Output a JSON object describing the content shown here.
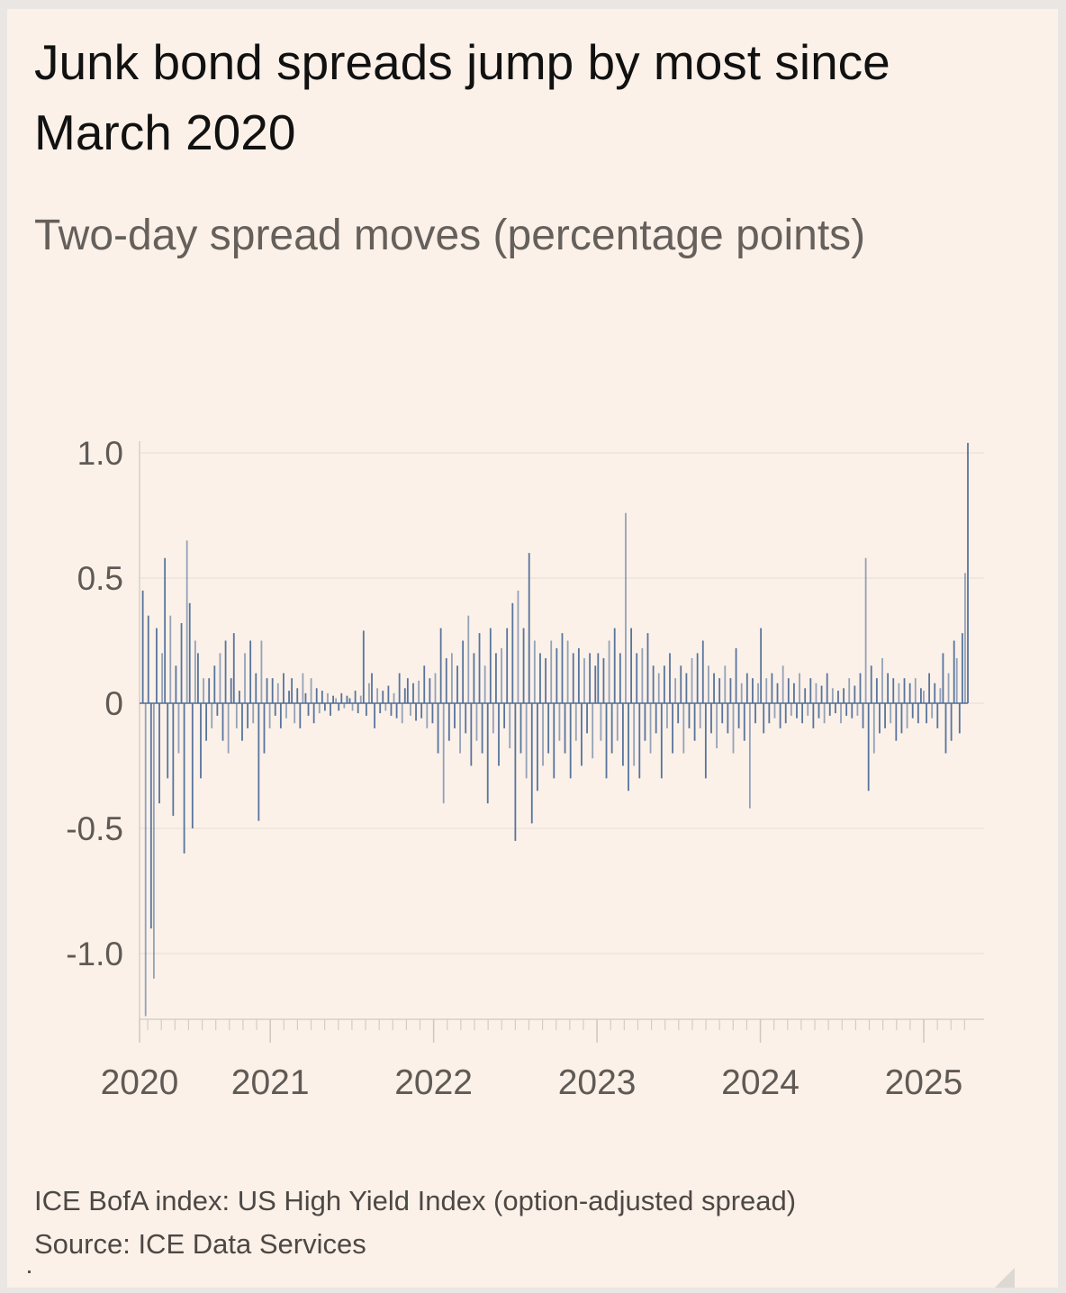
{
  "colors": {
    "background": "#fbf1e8",
    "bar": "#4f6d99",
    "grid": "#e6ddd4",
    "axis_text": "#5f5a56"
  },
  "header": {
    "title": "Junk bond spreads jump by most since March 2020",
    "subtitle": "Two-day spread moves (percentage points)"
  },
  "footer": {
    "note": "ICE BofA index: US High Yield Index (option-adjusted spread)",
    "source": "Source: ICE Data Services"
  },
  "chart_data": {
    "type": "bar",
    "title": "Junk bond spreads jump by most since March 2020",
    "subtitle": "Two-day spread moves (percentage points)",
    "xlabel": "",
    "ylabel": "Two-day spread moves (percentage points)",
    "ylim": [
      -1.25,
      1.05
    ],
    "xlim": [
      2020.2,
      2025.3
    ],
    "x_start": 2020.22,
    "x_end": 2025.27,
    "yticks": [
      1.0,
      0.5,
      0,
      -0.5,
      -1.0
    ],
    "ytick_labels": [
      "1.0",
      "0.5",
      "0",
      "-0.5",
      "-1.0"
    ],
    "xticks": [
      2020.2,
      2021,
      2022,
      2023,
      2024,
      2025
    ],
    "xtick_labels": [
      "2020",
      "2021",
      "2022",
      "2023",
      "2024",
      "2025"
    ],
    "grid": true,
    "legend": "none",
    "values": [
      0.45,
      -1.25,
      0.35,
      -0.9,
      -1.1,
      0.3,
      -0.4,
      0.2,
      0.58,
      -0.3,
      0.35,
      -0.45,
      0.15,
      -0.2,
      0.32,
      -0.6,
      0.65,
      0.4,
      -0.5,
      0.25,
      0.2,
      -0.3,
      0.1,
      -0.15,
      0.1,
      -0.1,
      0.15,
      -0.05,
      0.2,
      -0.15,
      0.25,
      -0.2,
      0.1,
      0.28,
      -0.1,
      0.05,
      -0.15,
      0.2,
      -0.1,
      0.25,
      -0.08,
      0.12,
      -0.47,
      0.25,
      -0.2,
      0.1,
      -0.1,
      0.1,
      -0.05,
      0.08,
      -0.1,
      0.12,
      -0.06,
      0.05,
      0.1,
      -0.08,
      0.06,
      -0.1,
      0.12,
      0.04,
      -0.05,
      0.1,
      -0.08,
      0.06,
      -0.04,
      0.05,
      -0.03,
      0.04,
      -0.05,
      0.03,
      0.02,
      -0.03,
      0.04,
      -0.02,
      0.03,
      0.02,
      -0.03,
      0.05,
      -0.04,
      0.03,
      0.29,
      -0.05,
      0.08,
      0.12,
      -0.1,
      0.06,
      -0.04,
      0.05,
      -0.03,
      0.07,
      -0.05,
      0.04,
      -0.06,
      0.12,
      -0.08,
      0.06,
      0.1,
      -0.05,
      0.08,
      -0.07,
      0.09,
      -0.06,
      0.15,
      -0.1,
      0.1,
      -0.08,
      0.12,
      -0.2,
      0.3,
      -0.4,
      0.18,
      -0.15,
      0.2,
      -0.1,
      0.15,
      -0.2,
      0.25,
      -0.12,
      0.35,
      -0.25,
      0.2,
      -0.15,
      0.28,
      -0.2,
      0.15,
      -0.4,
      0.3,
      -0.12,
      0.2,
      -0.25,
      0.22,
      -0.1,
      0.3,
      -0.18,
      0.4,
      -0.55,
      0.45,
      -0.2,
      0.3,
      -0.3,
      0.6,
      -0.48,
      0.25,
      -0.35,
      0.2,
      -0.25,
      0.18,
      -0.2,
      0.25,
      -0.3,
      0.22,
      -0.15,
      0.28,
      -0.2,
      0.25,
      -0.3,
      0.2,
      -0.15,
      0.22,
      -0.25,
      0.18,
      -0.12,
      0.2,
      -0.22,
      0.15,
      0.2,
      -0.15,
      0.18,
      -0.3,
      0.25,
      -0.2,
      0.3,
      -0.15,
      0.2,
      -0.25,
      0.76,
      -0.35,
      0.3,
      -0.25,
      0.2,
      -0.3,
      0.22,
      -0.15,
      0.28,
      -0.2,
      0.15,
      -0.12,
      0.12,
      -0.3,
      0.15,
      -0.1,
      0.2,
      -0.2,
      0.1,
      -0.08,
      0.15,
      -0.2,
      0.12,
      -0.1,
      0.18,
      -0.15,
      0.2,
      -0.1,
      0.25,
      -0.3,
      0.15,
      -0.12,
      0.12,
      -0.18,
      0.1,
      -0.08,
      0.15,
      -0.12,
      0.1,
      -0.2,
      0.22,
      -0.1,
      0.08,
      -0.15,
      0.12,
      -0.42,
      0.1,
      -0.08,
      0.08,
      0.3,
      -0.12,
      0.1,
      -0.08,
      0.12,
      -0.06,
      0.08,
      -0.1,
      0.15,
      -0.08,
      0.1,
      -0.05,
      0.08,
      -0.06,
      0.12,
      -0.08,
      0.06,
      -0.05,
      0.1,
      -0.1,
      0.08,
      -0.06,
      0.07,
      -0.08,
      0.12,
      -0.05,
      0.06,
      -0.04,
      0.05,
      -0.08,
      0.06,
      -0.05,
      0.1,
      -0.06,
      0.07,
      -0.05,
      0.12,
      -0.1,
      0.58,
      -0.35,
      0.15,
      -0.2,
      0.1,
      -0.12,
      0.18,
      -0.1,
      0.12,
      -0.08,
      0.1,
      -0.15,
      0.08,
      -0.12,
      0.1,
      -0.1,
      0.08,
      -0.06,
      0.1,
      -0.08,
      0.06,
      0.05,
      -0.08,
      0.12,
      -0.06,
      0.08,
      -0.1,
      0.06,
      0.2,
      -0.2,
      0.12,
      -0.15,
      0.25,
      0.18,
      -0.12,
      0.28,
      0.52,
      1.04
    ]
  }
}
